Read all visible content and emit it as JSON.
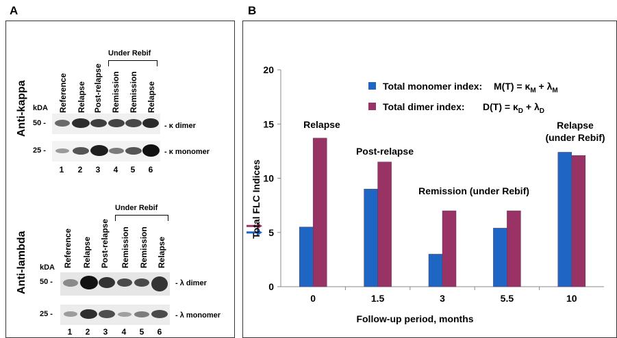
{
  "panels": {
    "a_label": "A",
    "b_label": "B"
  },
  "western": {
    "kappa": {
      "antibody": "Anti-kappa",
      "under_rebif": "Under Rebif",
      "kda": "kDA",
      "mw_top": "50 -",
      "mw_bottom": "25 -",
      "band_top": "- κ dimer",
      "band_bottom": "- κ monomer",
      "lanes": [
        "Reference",
        "Relapse",
        "Post-relapse",
        "Remission",
        "Remission",
        "Relapse"
      ],
      "lane_numbers": [
        "1",
        "2",
        "3",
        "4",
        "5",
        "6"
      ]
    },
    "lambda": {
      "antibody": "Anti-lambda",
      "under_rebif": "Under Rebif",
      "kda": "kDA",
      "mw_top": "50 -",
      "mw_bottom": "25 -",
      "band_top": "- λ dimer",
      "band_bottom": "- λ monomer",
      "lanes": [
        "Reference",
        "Relapse",
        "Post-relapse",
        "Remission",
        "Remission",
        "Relapse"
      ],
      "lane_numbers": [
        "1",
        "2",
        "3",
        "4",
        "5",
        "6"
      ]
    }
  },
  "chart_data": {
    "type": "bar",
    "categories": [
      "0",
      "1.5",
      "3",
      "5.5",
      "10"
    ],
    "series": [
      {
        "name": "Total monomer index:",
        "formula": "M(T) = κM + λM",
        "color": "#1f66c4",
        "values": [
          5.5,
          9.0,
          3.0,
          5.4,
          12.4
        ]
      },
      {
        "name": "Total dimer index:",
        "formula": "D(T) = κD + λD",
        "color": "#993366",
        "values": [
          13.7,
          11.5,
          7.0,
          7.0,
          12.1
        ]
      }
    ],
    "xlabel": "Follow-up period, months",
    "ylabel": "Total FLC Indices",
    "ylim": [
      0,
      20
    ],
    "yticks": [
      "0",
      "5",
      "10",
      "15",
      "20"
    ],
    "annotations": [
      "Relapse",
      "Post-relapse",
      "Remission (under Rebif)",
      "Relapse",
      "(under Rebif)"
    ],
    "reference_arrows": {
      "dimer_color": "#993366",
      "monomer_color": "#1f66c4",
      "dimer_value": 5.6,
      "monomer_value": 5.0
    },
    "grid": false,
    "legend_position": "top-right"
  }
}
